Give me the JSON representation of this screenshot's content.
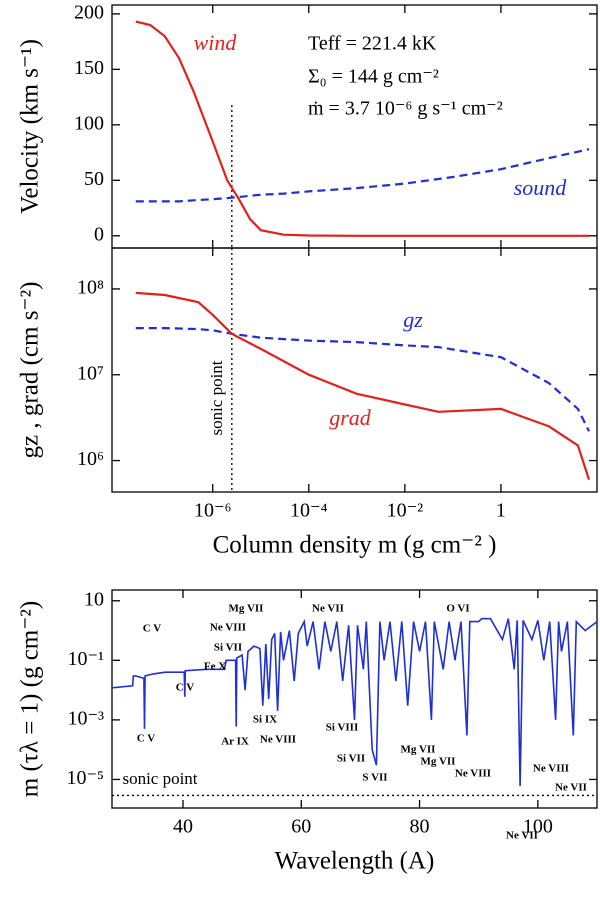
{
  "chart_data": [
    {
      "type": "line",
      "xlog": true,
      "x": [
        2.5e-08,
        5e-08,
        1e-07,
        2e-07,
        4e-07,
        1e-06,
        2e-06,
        3.5e-06,
        6e-06,
        1e-05,
        3e-05,
        0.0001,
        0.001,
        0.01,
        0.1,
        1,
        10,
        68
      ],
      "series": [
        {
          "name": "wind",
          "color": "#e3211c",
          "dash": false,
          "values": [
            193,
            190,
            180,
            160,
            130,
            85,
            50,
            33,
            15,
            5,
            1,
            0.3,
            0,
            0,
            0,
            0,
            0,
            0
          ]
        },
        {
          "name": "sound",
          "color": "#1f2fd6",
          "dash": true,
          "values": [
            31,
            31,
            31,
            31,
            32,
            33,
            34,
            35,
            36,
            37,
            38,
            40,
            43,
            47,
            53,
            60,
            70,
            78
          ]
        }
      ],
      "xlim": [
        8e-09,
        100
      ],
      "xticks": [
        1e-06,
        0.0001,
        0.01,
        1
      ],
      "ylim": [
        -11,
        208
      ],
      "yticks": [
        0,
        50,
        100,
        150,
        200
      ],
      "ylabel": "Velocity (km s⁻¹)",
      "vline": 2.5e-06,
      "annotations": [
        "Teff = 221.4 kK",
        "Σ₀ = 144  g cm⁻²",
        "ṁ = 3.7 10⁻⁶ g s⁻¹ cm⁻²"
      ]
    },
    {
      "type": "line",
      "xlog": true,
      "ylog": true,
      "x": [
        2.5e-08,
        1e-07,
        5e-07,
        1e-06,
        2.5e-06,
        1e-05,
        0.0001,
        0.001,
        0.01,
        0.05,
        1,
        10,
        40,
        68
      ],
      "series": [
        {
          "name": "gz",
          "color": "#1f2fd6",
          "dash": true,
          "values": [
            35000000.0,
            35000000.0,
            34000000.0,
            33000000.0,
            30000000.0,
            27000000.0,
            25000000.0,
            24000000.0,
            22000000.0,
            21000000.0,
            16000000.0,
            8000000.0,
            4000000.0,
            2200000.0
          ]
        },
        {
          "name": "grad",
          "color": "#e3211c",
          "dash": false,
          "values": [
            90000000.0,
            85000000.0,
            70000000.0,
            50000000.0,
            30000000.0,
            20000000.0,
            10000000.0,
            6000000.0,
            4500000.0,
            3700000.0,
            4000000.0,
            2500000.0,
            1500000.0,
            600000.0
          ]
        }
      ],
      "xlim": [
        8e-09,
        100
      ],
      "xticks": [
        {
          "value": 1e-06,
          "label": "10⁻⁶"
        },
        {
          "value": 0.0001,
          "label": "10⁻⁴"
        },
        {
          "value": 0.01,
          "label": "10⁻²"
        },
        1
      ],
      "ylim": [
        430000.0,
        300000000.0
      ],
      "yticks": [
        {
          "value": 1000000.0,
          "label": "10⁶"
        },
        {
          "value": 10000000.0,
          "label": "10⁷"
        },
        {
          "value": 100000000.0,
          "label": "10⁸"
        }
      ],
      "xlabel": "Column density m (g cm⁻² )",
      "ylabel": "gz , grad (cm s⁻²)",
      "vline": 2.5e-06,
      "annotations": [
        "sonic point"
      ]
    },
    {
      "type": "line",
      "ylog": true,
      "x": [
        28,
        31.5,
        31.6,
        32,
        33.4,
        33.5,
        33.6,
        35,
        37,
        40.2,
        40.3,
        40.4,
        44,
        47,
        47.3,
        48.9,
        49.0,
        49.1,
        50,
        50.5,
        51,
        52,
        53,
        53.5,
        54,
        54.5,
        55,
        55.5,
        56,
        56.5,
        57,
        58,
        58.8,
        59.5,
        60.5,
        61,
        62,
        63,
        64,
        65,
        66,
        67,
        68,
        69,
        69.5,
        70.5,
        71,
        72,
        72.7,
        73.3,
        74,
        75,
        76,
        77,
        78,
        79,
        80,
        81,
        82,
        82.5,
        84,
        85,
        86,
        87,
        88,
        88.5,
        90,
        90.5,
        92,
        94,
        95,
        96,
        96.5,
        97,
        97.5,
        99,
        100,
        101,
        102,
        103,
        103.5,
        104,
        105,
        106,
        106.5,
        108,
        110
      ],
      "values": [
        0.012,
        0.014,
        0.03,
        0.03,
        0.025,
        0.0005,
        0.03,
        0.035,
        0.04,
        0.04,
        0.006,
        0.045,
        0.05,
        0.05,
        0.1,
        0.1,
        0.0006,
        0.12,
        0.15,
        0.01,
        0.2,
        0.3,
        0.25,
        0.003,
        0.35,
        0.005,
        0.5,
        0.8,
        0.002,
        0.9,
        0.1,
        1,
        0.02,
        0.8,
        2,
        0.3,
        2,
        0.05,
        2,
        0.2,
        2,
        0.02,
        1.5,
        0.001,
        1.5,
        0.05,
        2,
        0.0001,
        3e-05,
        2,
        0.1,
        2,
        0.02,
        2,
        0.003,
        2,
        0.2,
        2,
        0.001,
        2,
        0.05,
        2,
        0.1,
        2,
        0.0003,
        2,
        2,
        2.5,
        2.5,
        0.5,
        2.5,
        0.05,
        2.2,
        6e-06,
        2.2,
        0.5,
        2.2,
        0.1,
        2,
        0.001,
        2,
        0.2,
        2,
        0.0003,
        2,
        1,
        2
      ],
      "color": "#1f2fd6",
      "xlim": [
        28,
        110
      ],
      "xticks": [
        40,
        60,
        80,
        100
      ],
      "ylim": [
        1.1e-06,
        23
      ],
      "yticks": [
        {
          "value": 1e-05,
          "label": "10⁻⁵"
        },
        {
          "value": 0.001,
          "label": "10⁻³"
        },
        {
          "value": 0.1,
          "label": "10⁻¹"
        },
        10
      ],
      "xlabel": "Wavelength   (A)",
      "ylabel": "m (τλ = 1)  (g cm⁻²)",
      "hline": 2.9e-06,
      "annotations": [
        "sonic point",
        "C V",
        "Ne VIII",
        "Si VII",
        "Fe X",
        "Mg VII",
        "Ne VII",
        "O VI",
        "C V",
        "C V",
        "Ar IX",
        "Si IX",
        "Ne VIII",
        "Si VIII",
        "Si VII",
        "S VII",
        "Mg VII",
        "Mg VII",
        "Ne VIII",
        "Ne VIII",
        "Ne VII",
        "Ne VII"
      ]
    }
  ]
}
